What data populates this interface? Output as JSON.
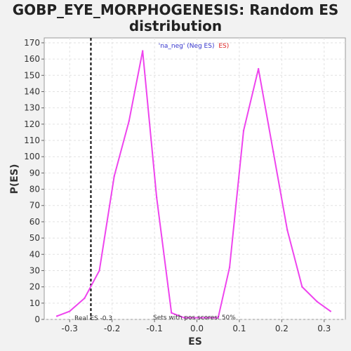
{
  "chart_data": {
    "type": "line",
    "title_line1": "GOBP_EYE_MORPHOGENESIS: Random ES",
    "title_line2": "distribution",
    "xlabel": "ES",
    "ylabel": "P(ES)",
    "xlim": [
      -0.36,
      0.35
    ],
    "ylim": [
      0,
      173
    ],
    "xticks": [
      -0.3,
      -0.2,
      -0.1,
      0.0,
      0.1,
      0.2,
      0.3
    ],
    "xtick_labels": [
      "-0.3",
      "-0.2",
      "-0.1",
      "0.0",
      "0.1",
      "0.2",
      "0.3"
    ],
    "yticks": [
      0,
      10,
      20,
      30,
      40,
      50,
      60,
      70,
      80,
      90,
      100,
      110,
      120,
      130,
      140,
      150,
      160,
      170
    ],
    "grid": true,
    "series": [
      {
        "color": "#ee44ee",
        "x": [
          -0.33,
          -0.3,
          -0.265,
          -0.23,
          -0.195,
          -0.16,
          -0.128,
          -0.095,
          -0.06,
          -0.03,
          0.05,
          0.077,
          0.11,
          0.145,
          0.18,
          0.213,
          0.248,
          0.283,
          0.315
        ],
        "y": [
          2,
          5,
          13,
          30,
          88,
          122,
          165,
          75,
          4,
          1,
          1,
          32,
          116,
          154,
          103,
          55,
          20,
          11,
          5
        ]
      }
    ],
    "real_es": {
      "value": -0.25,
      "label": "Real ES -0.3",
      "color": "#000000"
    },
    "annotation": "Sets with pos scores: 50%",
    "legend": {
      "part1": "'na_neg' (Neg ES)",
      "part2": "ES)",
      "color1": "#3333cc",
      "color2": "#dd2222",
      "placement": "top-center"
    }
  }
}
